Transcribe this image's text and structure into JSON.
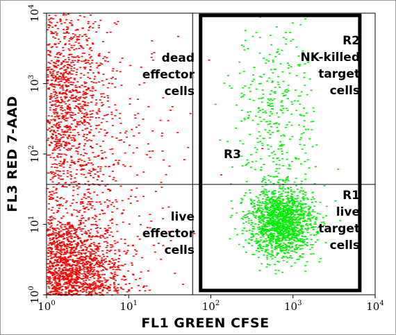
{
  "chart_data": {
    "type": "scatter",
    "title": "",
    "xlabel": "FL1 GREEN CFSE",
    "ylabel": "FL3 RED 7-AAD",
    "xscale": "log",
    "yscale": "log",
    "xlim": [
      1,
      10000
    ],
    "ylim": [
      1,
      10000
    ],
    "x_ticks": [
      {
        "base": "10",
        "exp": "0",
        "value": 1
      },
      {
        "base": "10",
        "exp": "1",
        "value": 10
      },
      {
        "base": "10",
        "exp": "2",
        "value": 100
      },
      {
        "base": "10",
        "exp": "3",
        "value": 1000
      },
      {
        "base": "10",
        "exp": "4",
        "value": 10000
      }
    ],
    "y_ticks": [
      {
        "base": "10",
        "exp": "0",
        "value": 1
      },
      {
        "base": "10",
        "exp": "1",
        "value": 10
      },
      {
        "base": "10",
        "exp": "2",
        "value": 100
      },
      {
        "base": "10",
        "exp": "3",
        "value": 1000
      },
      {
        "base": "10",
        "exp": "4",
        "value": 10000
      }
    ],
    "grid": false,
    "quadrant_lines": {
      "x": 60,
      "y": 37
    },
    "gate_box": {
      "x": [
        75,
        6500
      ],
      "y": [
        1.15,
        9300
      ]
    },
    "series": [
      {
        "color": "#ff0000",
        "clusters": [
          {
            "cx": 1.6,
            "cy": 1.8,
            "sx": 0.35,
            "sy": 0.45,
            "n": 2600
          },
          {
            "cx": 1.3,
            "cy": 600,
            "sx": 0.3,
            "sy": 0.8,
            "n": 1700
          },
          {
            "cx": 3.0,
            "cy": 60,
            "sx": 0.6,
            "sy": 0.9,
            "n": 500
          }
        ]
      },
      {
        "color": "#00ee00",
        "clusters": [
          {
            "cx": 700,
            "cy": 11,
            "sx": 0.2,
            "sy": 0.25,
            "n": 1500
          },
          {
            "cx": 600,
            "cy": 400,
            "sx": 0.25,
            "sy": 0.6,
            "n": 350
          }
        ]
      }
    ],
    "annotations": [
      {
        "id": "dead",
        "lines": [
          "dead",
          "effector",
          "cells"
        ],
        "x": 280,
        "y": 89,
        "anchor": "end"
      },
      {
        "id": "r2",
        "lines": [
          "R2",
          "NK-killed",
          "target",
          "cells"
        ],
        "x": 518,
        "y": 64,
        "anchor": "end"
      },
      {
        "id": "r3",
        "lines": [
          "R3"
        ],
        "x": 322,
        "y": 228,
        "anchor": "start"
      },
      {
        "id": "live",
        "lines": [
          "live",
          "effector",
          "cells"
        ],
        "x": 280,
        "y": 318,
        "anchor": "end"
      },
      {
        "id": "r1",
        "lines": [
          "R1",
          "live",
          "target",
          "cells"
        ],
        "x": 518,
        "y": 287,
        "anchor": "end"
      }
    ]
  }
}
